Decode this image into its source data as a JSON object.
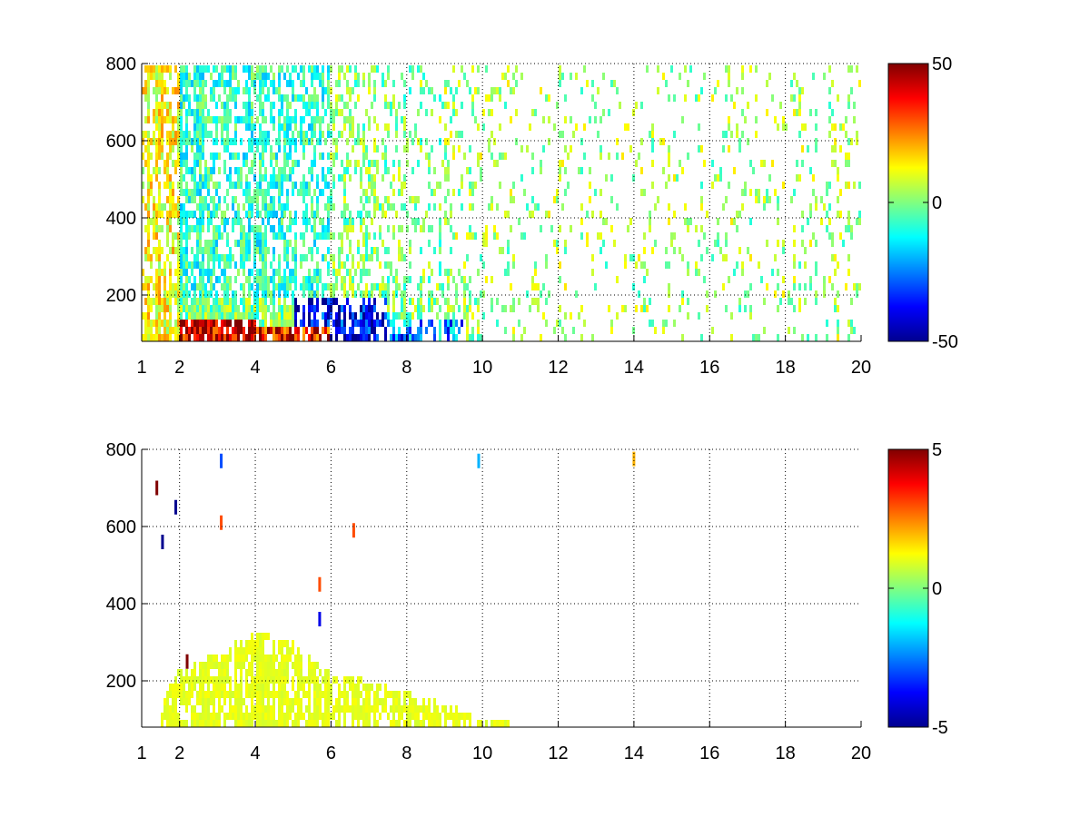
{
  "chart_data": [
    {
      "type": "heatmap",
      "title": "",
      "xlabel": "",
      "ylabel": "",
      "xlim": [
        1,
        20
      ],
      "ylim": [
        80,
        800
      ],
      "xticks": [
        1,
        2,
        4,
        6,
        8,
        10,
        12,
        14,
        16,
        18,
        20
      ],
      "yticks": [
        200,
        400,
        600,
        800
      ],
      "grid": true,
      "colormap": "jet",
      "clim": [
        -50,
        50
      ],
      "colorbar_ticks": [
        -50,
        0,
        50
      ],
      "density_profile": {
        "x": [
          1,
          2,
          3,
          4,
          5,
          6,
          7,
          8,
          9,
          10,
          11,
          12,
          13,
          14,
          15,
          16,
          17,
          18,
          19,
          20
        ],
        "fill_fraction": [
          0.6,
          0.65,
          0.6,
          0.55,
          0.5,
          0.4,
          0.32,
          0.25,
          0.2,
          0.16,
          0.14,
          0.12,
          0.12,
          0.12,
          0.13,
          0.12,
          0.12,
          0.12,
          0.14,
          0.14
        ]
      },
      "dominant_values": [
        {
          "x_range": [
            1,
            2
          ],
          "y_range": [
            80,
            800
          ],
          "value": 12
        },
        {
          "x_range": [
            2,
            4
          ],
          "y_range": [
            80,
            130
          ],
          "value": 45
        },
        {
          "x_range": [
            4,
            6
          ],
          "y_range": [
            80,
            120
          ],
          "value": 40
        },
        {
          "x_range": [
            5,
            7.5
          ],
          "y_range": [
            80,
            190
          ],
          "value": -40
        },
        {
          "x_range": [
            7.5,
            9.5
          ],
          "y_range": [
            80,
            140
          ],
          "value": -25
        },
        {
          "x_range": [
            2,
            6
          ],
          "y_range": [
            200,
            800
          ],
          "value": -8
        },
        {
          "x_range": [
            9,
            20
          ],
          "y_range": [
            80,
            800
          ],
          "value": 3
        }
      ]
    },
    {
      "type": "heatmap",
      "title": "",
      "xlabel": "",
      "ylabel": "",
      "xlim": [
        1,
        20
      ],
      "ylim": [
        80,
        800
      ],
      "xticks": [
        1,
        2,
        4,
        6,
        8,
        10,
        12,
        14,
        16,
        18,
        20
      ],
      "yticks": [
        200,
        400,
        600,
        800
      ],
      "grid": true,
      "colormap": "jet",
      "clim": [
        -5,
        5
      ],
      "colorbar_ticks": [
        -5,
        0,
        5
      ],
      "density_profile": {
        "x": [
          1.5,
          2,
          3,
          4,
          5,
          5.6,
          6,
          7,
          8,
          9,
          10,
          11
        ],
        "top_y": [
          150,
          230,
          270,
          330,
          300,
          250,
          220,
          200,
          170,
          140,
          100,
          85
        ]
      },
      "dominant_value": 1,
      "sparse_marks": [
        {
          "x": 1.4,
          "y": 700,
          "value": 5
        },
        {
          "x": 1.55,
          "y": 560,
          "value": -5
        },
        {
          "x": 1.9,
          "y": 650,
          "value": -5
        },
        {
          "x": 2.2,
          "y": 250,
          "value": 5
        },
        {
          "x": 3.1,
          "y": 770,
          "value": -3
        },
        {
          "x": 3.1,
          "y": 610,
          "value": 3
        },
        {
          "x": 5.7,
          "y": 450,
          "value": 3
        },
        {
          "x": 5.7,
          "y": 360,
          "value": -4
        },
        {
          "x": 6.6,
          "y": 590,
          "value": 3
        },
        {
          "x": 9.9,
          "y": 770,
          "value": -2
        },
        {
          "x": 14.0,
          "y": 775,
          "value": 2
        }
      ]
    }
  ]
}
